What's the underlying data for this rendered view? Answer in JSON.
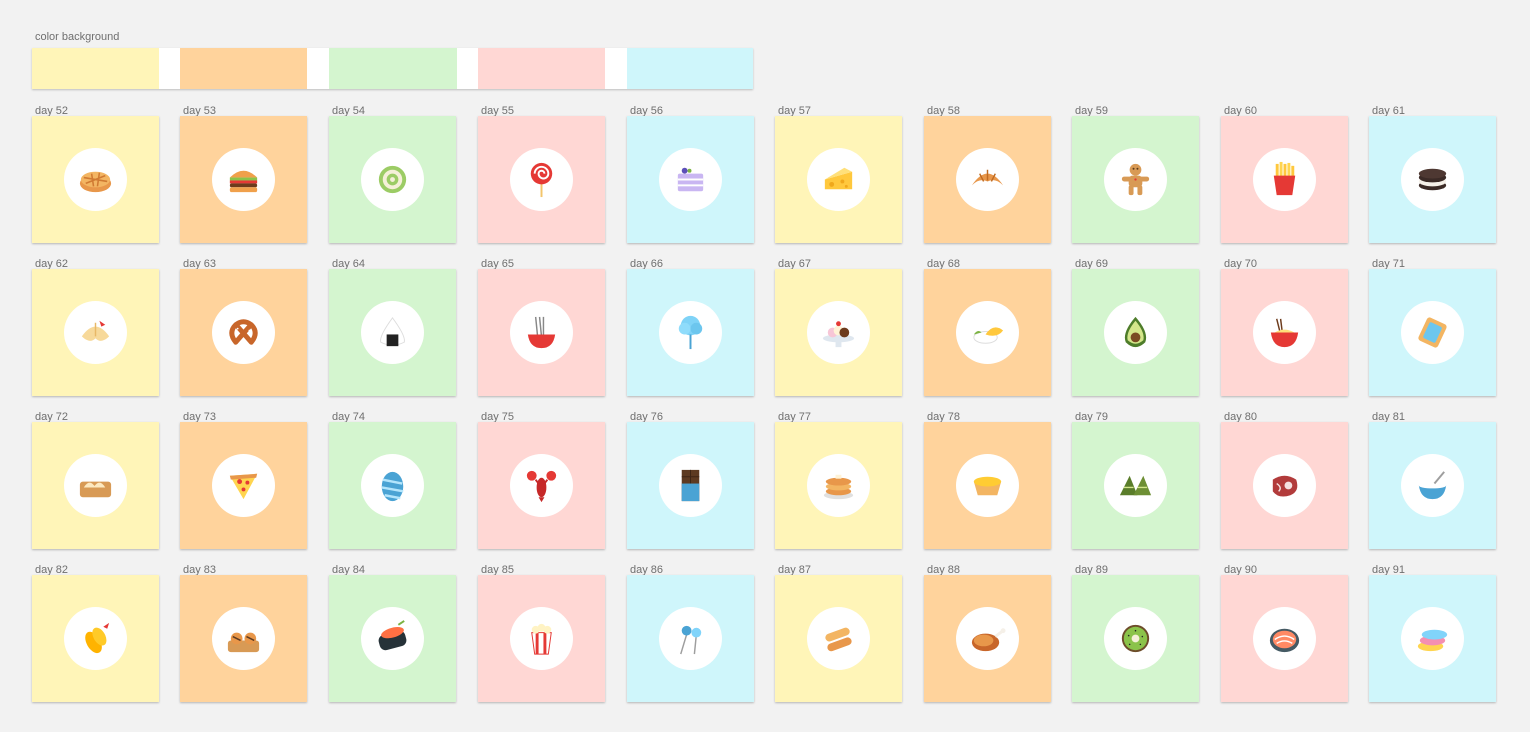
{
  "swatch_section": {
    "label": "color background",
    "colors": [
      "#fff5b8",
      "#ffd39c",
      "#d4f5cf",
      "#ffd7d4",
      "#cff6fb"
    ]
  },
  "days": [
    {
      "label": "day 52",
      "bg": "#fff5b8",
      "icon": "pie-icon"
    },
    {
      "label": "day 53",
      "bg": "#ffd39c",
      "icon": "burger-icon"
    },
    {
      "label": "day 54",
      "bg": "#d4f5cf",
      "icon": "swiss-roll-icon"
    },
    {
      "label": "day 55",
      "bg": "#ffd7d4",
      "icon": "lollipop-icon"
    },
    {
      "label": "day 56",
      "bg": "#cff6fb",
      "icon": "layer-cake-icon"
    },
    {
      "label": "day 57",
      "bg": "#fff5b8",
      "icon": "cheese-icon"
    },
    {
      "label": "day 58",
      "bg": "#ffd39c",
      "icon": "croissant-icon"
    },
    {
      "label": "day 59",
      "bg": "#d4f5cf",
      "icon": "gingerbread-man-icon"
    },
    {
      "label": "day 60",
      "bg": "#ffd7d4",
      "icon": "french-fries-icon"
    },
    {
      "label": "day 61",
      "bg": "#cff6fb",
      "icon": "sandwich-cookies-icon"
    },
    {
      "label": "day 62",
      "bg": "#fff5b8",
      "icon": "fortune-cookie-icon"
    },
    {
      "label": "day 63",
      "bg": "#ffd39c",
      "icon": "pretzel-icon"
    },
    {
      "label": "day 64",
      "bg": "#d4f5cf",
      "icon": "onigiri-icon"
    },
    {
      "label": "day 65",
      "bg": "#ffd7d4",
      "icon": "noodle-bowl-icon"
    },
    {
      "label": "day 66",
      "bg": "#cff6fb",
      "icon": "cotton-candy-icon"
    },
    {
      "label": "day 67",
      "bg": "#fff5b8",
      "icon": "banana-split-icon"
    },
    {
      "label": "day 68",
      "bg": "#ffd39c",
      "icon": "mango-sticky-rice-icon"
    },
    {
      "label": "day 69",
      "bg": "#d4f5cf",
      "icon": "avocado-icon"
    },
    {
      "label": "day 70",
      "bg": "#ffd7d4",
      "icon": "ramen-bowl-icon"
    },
    {
      "label": "day 71",
      "bg": "#cff6fb",
      "icon": "toaster-pastry-icon"
    },
    {
      "label": "day 72",
      "bg": "#fff5b8",
      "icon": "dumplings-icon"
    },
    {
      "label": "day 73",
      "bg": "#ffd39c",
      "icon": "pizza-slice-icon"
    },
    {
      "label": "day 74",
      "bg": "#d4f5cf",
      "icon": "easter-egg-icon"
    },
    {
      "label": "day 75",
      "bg": "#ffd7d4",
      "icon": "lobster-icon"
    },
    {
      "label": "day 76",
      "bg": "#cff6fb",
      "icon": "chocolate-bar-icon"
    },
    {
      "label": "day 77",
      "bg": "#fff5b8",
      "icon": "pancakes-icon"
    },
    {
      "label": "day 78",
      "bg": "#ffd39c",
      "icon": "egg-tart-icon"
    },
    {
      "label": "day 79",
      "bg": "#d4f5cf",
      "icon": "zongzi-icon"
    },
    {
      "label": "day 80",
      "bg": "#ffd7d4",
      "icon": "steak-icon"
    },
    {
      "label": "day 81",
      "bg": "#cff6fb",
      "icon": "batter-bowl-icon"
    },
    {
      "label": "day 82",
      "bg": "#fff5b8",
      "icon": "fried-shrimp-icon"
    },
    {
      "label": "day 83",
      "bg": "#ffd39c",
      "icon": "takoyaki-icon"
    },
    {
      "label": "day 84",
      "bg": "#d4f5cf",
      "icon": "sushi-roll-icon"
    },
    {
      "label": "day 85",
      "bg": "#ffd7d4",
      "icon": "popcorn-icon"
    },
    {
      "label": "day 86",
      "bg": "#cff6fb",
      "icon": "cake-pops-icon"
    },
    {
      "label": "day 87",
      "bg": "#fff5b8",
      "icon": "spring-rolls-icon"
    },
    {
      "label": "day 88",
      "bg": "#ffd39c",
      "icon": "roast-chicken-icon"
    },
    {
      "label": "day 89",
      "bg": "#d4f5cf",
      "icon": "kiwi-icon"
    },
    {
      "label": "day 90",
      "bg": "#ffd7d4",
      "icon": "salmon-steak-icon"
    },
    {
      "label": "day 91",
      "bg": "#cff6fb",
      "icon": "macarons-icon"
    }
  ]
}
